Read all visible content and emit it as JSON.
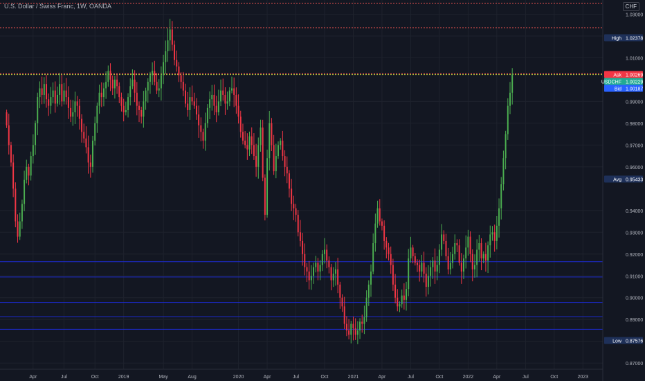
{
  "header": {
    "symbol_title": "U.S. Dollar / Swiss Franc, 1W, OANDA",
    "currency_badge": "CHF"
  },
  "colors": {
    "background": "#131722",
    "grid": "#1e222d",
    "up": "#4caf50",
    "down": "#f23645",
    "axis_text": "#b2b5be",
    "high_low_label": "#1e3059",
    "ask_label": "#f23645",
    "last_label": "#22ab94",
    "bid_label": "#2962ff",
    "red_line": "#ef5350",
    "green_line": "#c6ce3d",
    "blue_line": "#1c2bd1"
  },
  "chart_data": {
    "type": "candlestick",
    "title": "U.S. Dollar / Swiss Franc, 1W, OANDA",
    "ylim": [
      0.8672,
      1.0365
    ],
    "y_ticks": [
      "1.03000",
      "1.02000",
      "1.01000",
      "0.99000",
      "0.98000",
      "0.97000",
      "0.96000",
      "0.94000",
      "0.93000",
      "0.92000",
      "0.91000",
      "0.90000",
      "0.89000",
      "0.88000",
      "0.87000"
    ],
    "x_ticks": [
      "Apr",
      "Jul",
      "Oct",
      "2019",
      "May",
      "Aug",
      "2020",
      "Apr",
      "Jul",
      "Oct",
      "2021",
      "Apr",
      "Jul",
      "Oct",
      "2022",
      "Apr",
      "Jul",
      "Oct",
      "2023"
    ],
    "x_tick_weeks": [
      11,
      25,
      39,
      52,
      70,
      83,
      104,
      117,
      130,
      143,
      156,
      169,
      182,
      195,
      208,
      221,
      234,
      247,
      260
    ],
    "x_range_weeks": [
      -4,
      269
    ],
    "candles_start_week": -1,
    "price_labels": [
      {
        "label": "High",
        "value": "1.02378"
      },
      {
        "label": "Ask",
        "value": "1.00269"
      },
      {
        "label": "USDCHF",
        "value": "1.00229"
      },
      {
        "label": "Bid",
        "value": "1.00187"
      },
      {
        "label": "Avg",
        "value": "0.95433"
      },
      {
        "label": "Low",
        "value": "0.87576"
      }
    ],
    "horizontal_lines": [
      {
        "value": 1.035,
        "color": "red"
      },
      {
        "value": 1.0238,
        "color": "red"
      },
      {
        "value": 1.0027,
        "color": "red"
      },
      {
        "value": 1.0023,
        "color": "green"
      },
      {
        "value": 0.9165,
        "color": "blue"
      },
      {
        "value": 0.9095,
        "color": "blue"
      },
      {
        "value": 0.8978,
        "color": "blue"
      },
      {
        "value": 0.8913,
        "color": "blue"
      },
      {
        "value": 0.8855,
        "color": "blue"
      }
    ],
    "closes": [
      0.979,
      0.97,
      0.962,
      0.95,
      0.935,
      0.928,
      0.935,
      0.943,
      0.954,
      0.96,
      0.956,
      0.965,
      0.97,
      0.98,
      0.992,
      0.996,
      0.993,
      0.998,
      0.991,
      0.988,
      0.992,
      0.995,
      0.989,
      0.993,
      0.998,
      0.99,
      0.995,
      0.992,
      0.987,
      0.983,
      0.985,
      0.99,
      0.988,
      0.982,
      0.976,
      0.973,
      0.969,
      0.962,
      0.96,
      0.972,
      0.98,
      0.988,
      0.994,
      0.992,
      0.996,
      0.999,
      1.004,
      1.0,
      0.996,
      1.0,
      0.997,
      0.992,
      0.988,
      0.985,
      0.986,
      0.992,
      0.997,
      1.0,
      0.994,
      0.988,
      0.986,
      0.983,
      0.99,
      0.995,
      0.999,
      1.002,
      1.004,
      0.999,
      0.995,
      0.996,
      1.002,
      1.008,
      1.013,
      1.018,
      1.023,
      1.016,
      1.009,
      1.006,
      1.002,
      0.999,
      0.995,
      0.989,
      0.986,
      0.992,
      0.99,
      0.988,
      0.984,
      0.979,
      0.976,
      0.972,
      0.98,
      0.987,
      0.991,
      0.993,
      0.988,
      0.985,
      0.99,
      0.995,
      0.993,
      0.989,
      0.99,
      0.995,
      0.996,
      0.993,
      0.988,
      0.983,
      0.976,
      0.972,
      0.97,
      0.968,
      0.974,
      0.97,
      0.965,
      0.96,
      0.97,
      0.978,
      0.955,
      0.938,
      0.964,
      0.98,
      0.97,
      0.958,
      0.965,
      0.97,
      0.972,
      0.965,
      0.96,
      0.957,
      0.95,
      0.943,
      0.941,
      0.938,
      0.93,
      0.926,
      0.92,
      0.914,
      0.912,
      0.908,
      0.91,
      0.914,
      0.916,
      0.912,
      0.915,
      0.92,
      0.922,
      0.917,
      0.914,
      0.908,
      0.911,
      0.913,
      0.906,
      0.9,
      0.896,
      0.888,
      0.885,
      0.883,
      0.888,
      0.886,
      0.883,
      0.885,
      0.889,
      0.888,
      0.891,
      0.9,
      0.906,
      0.912,
      0.925,
      0.934,
      0.941,
      0.935,
      0.933,
      0.926,
      0.923,
      0.92,
      0.915,
      0.906,
      0.9,
      0.896,
      0.897,
      0.901,
      0.899,
      0.904,
      0.918,
      0.923,
      0.919,
      0.916,
      0.915,
      0.912,
      0.916,
      0.911,
      0.905,
      0.91,
      0.914,
      0.917,
      0.912,
      0.915,
      0.922,
      0.929,
      0.926,
      0.919,
      0.913,
      0.916,
      0.92,
      0.925,
      0.924,
      0.916,
      0.912,
      0.918,
      0.923,
      0.928,
      0.92,
      0.913,
      0.915,
      0.922,
      0.925,
      0.918,
      0.92,
      0.917,
      0.924,
      0.929,
      0.93,
      0.926,
      0.933,
      0.941,
      0.952,
      0.964,
      0.975,
      0.988,
      0.994,
      1.0023
    ]
  }
}
